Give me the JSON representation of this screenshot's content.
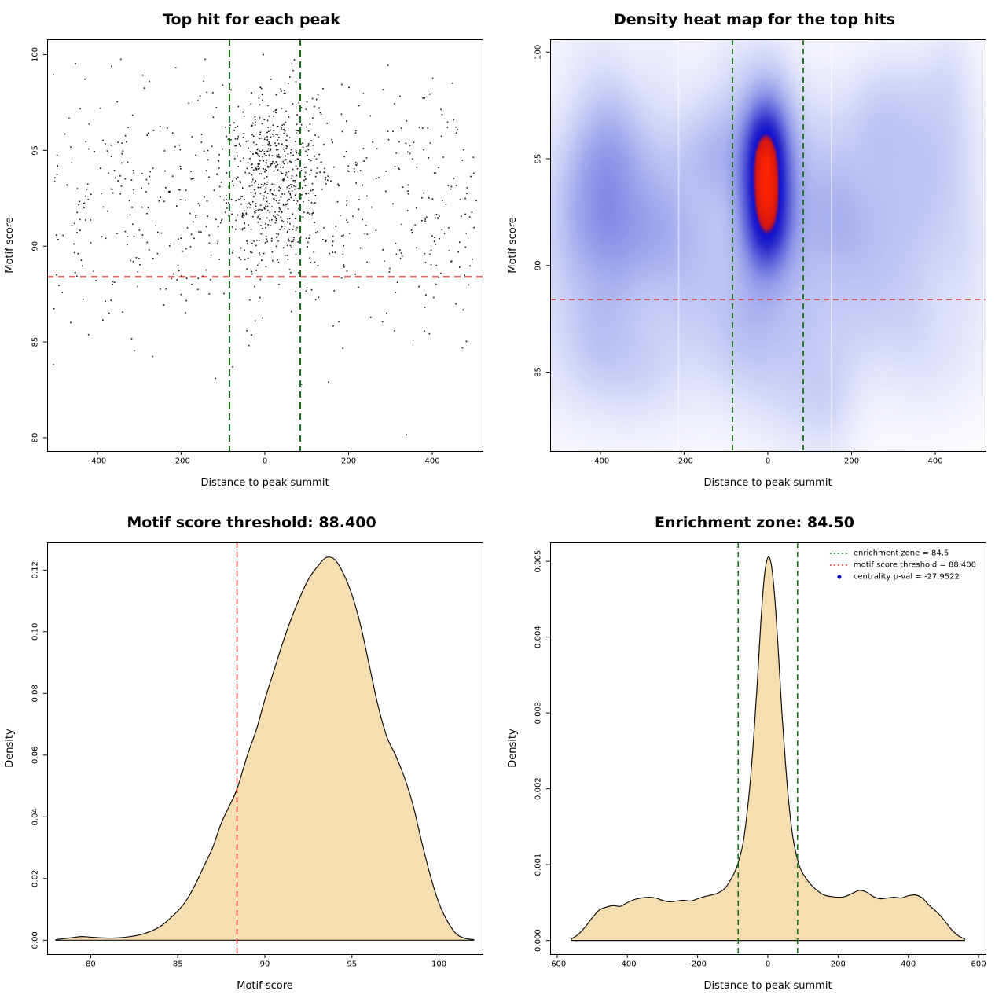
{
  "page": {
    "background": "#ffffff"
  },
  "chart_data": [
    {
      "id": "scatter",
      "type": "scatter",
      "title": "Top hit for each peak",
      "xlabel": "Distance to peak summit",
      "ylabel": "Motif score",
      "xlim": [
        -520,
        520
      ],
      "ylim": [
        79.3,
        100.8
      ],
      "xticks": [
        -400,
        -200,
        0,
        200,
        400
      ],
      "xtick_labels": [
        "-400",
        "-200",
        "0",
        "200",
        "400"
      ],
      "yticks": [
        80,
        85,
        90,
        95,
        100
      ],
      "ytick_labels": [
        "80",
        "85",
        "90",
        "95",
        "100"
      ],
      "point_color": "#111111",
      "n_points": 1150,
      "seed": 42,
      "clusters": [
        {
          "fraction": 0.44,
          "x_mean": 18,
          "x_sd": 58,
          "y_mean": 93.7,
          "y_sd": 2.15
        },
        {
          "fraction": 0.56,
          "x_min": -505,
          "x_max": 505,
          "y_mean": 92.4,
          "y_sd": 3.35
        }
      ],
      "y_clip": [
        80,
        100.4
      ],
      "outliers": [
        [
          338,
          80.15
        ],
        [
          152,
          82.9
        ],
        [
          -118,
          83.1
        ]
      ],
      "hlines": [
        {
          "y": 88.4,
          "color": "#e03030",
          "width": 2,
          "dash": [
            8,
            6
          ]
        }
      ],
      "vlines": [
        {
          "x": -84.5,
          "color": "#166e16",
          "width": 2,
          "dash": [
            8,
            6
          ]
        },
        {
          "x": 84.5,
          "color": "#166e16",
          "width": 2,
          "dash": [
            8,
            6
          ]
        }
      ]
    },
    {
      "id": "heatmap",
      "type": "heatmap",
      "title": "Density heat map for the top hits",
      "xlabel": "Distance to peak summit",
      "ylabel": "Motif score",
      "xlim": [
        -520,
        520
      ],
      "ylim": [
        81.3,
        100.6
      ],
      "xticks": [
        -400,
        -200,
        0,
        200,
        400
      ],
      "xtick_labels": [
        "-400",
        "-200",
        "0",
        "200",
        "400"
      ],
      "yticks": [
        85,
        90,
        95,
        100
      ],
      "ytick_labels": [
        "85",
        "90",
        "95",
        "100"
      ],
      "gamma": 0.75,
      "kernels": [
        [
          -5,
          93.8,
          42,
          2.1,
          1.0
        ],
        [
          -5,
          95.9,
          36,
          1.6,
          0.5
        ],
        [
          0,
          91.6,
          38,
          1.5,
          0.45
        ],
        [
          0,
          92.5,
          380,
          5.5,
          0.1
        ],
        [
          -440,
          93.5,
          70,
          2.5,
          0.16
        ],
        [
          -350,
          95.5,
          60,
          2.0,
          0.13
        ],
        [
          -260,
          92.5,
          55,
          2.2,
          0.12
        ],
        [
          -120,
          95.0,
          50,
          2.0,
          0.12
        ],
        [
          150,
          92.0,
          60,
          2.5,
          0.13
        ],
        [
          260,
          91.5,
          70,
          2.5,
          0.12
        ],
        [
          380,
          92.5,
          60,
          2.5,
          0.12
        ],
        [
          470,
          90.5,
          50,
          2.5,
          0.1
        ],
        [
          60,
          88.5,
          60,
          2.0,
          0.1
        ],
        [
          -60,
          86.5,
          70,
          2.0,
          0.08
        ],
        [
          200,
          87.0,
          80,
          2.0,
          0.08
        ],
        [
          -200,
          88.5,
          60,
          2.0,
          0.09
        ],
        [
          -480,
          88.0,
          60,
          2.5,
          0.09
        ],
        [
          440,
          95.5,
          55,
          2.0,
          0.1
        ],
        [
          320,
          96.5,
          60,
          2.0,
          0.09
        ],
        [
          -320,
          90.0,
          70,
          2.2,
          0.1
        ]
      ],
      "noise": {
        "seed": 11,
        "count": 60,
        "x_range": [
          -515,
          515
        ],
        "y_range": [
          83.5,
          99.5
        ],
        "sx_range": [
          35,
          95
        ],
        "sy_range": [
          1.4,
          3.0
        ],
        "w_range": [
          0.025,
          0.085
        ]
      },
      "colormap": [
        [
          0.0,
          "#ffffff"
        ],
        [
          0.07,
          "#f5f6fd"
        ],
        [
          0.16,
          "#e2e5fa"
        ],
        [
          0.3,
          "#bcc3f2"
        ],
        [
          0.46,
          "#8e96e8"
        ],
        [
          0.62,
          "#565cd8"
        ],
        [
          0.74,
          "#2b2bcc"
        ],
        [
          0.84,
          "#0f0fd0"
        ],
        [
          0.88,
          "#cf1515"
        ],
        [
          1.0,
          "#ff2400"
        ]
      ],
      "artifact_stripes_x": [
        -213,
        152
      ],
      "hlines": [
        {
          "y": 88.4,
          "color": "#e04040",
          "width": 1.4,
          "dash": [
            7,
            5
          ]
        }
      ],
      "vlines": [
        {
          "x": -84.5,
          "color": "#166e16",
          "width": 1.8,
          "dash": [
            7,
            5
          ]
        },
        {
          "x": 84.5,
          "color": "#166e16",
          "width": 1.8,
          "dash": [
            7,
            5
          ]
        }
      ]
    },
    {
      "id": "motif-density",
      "type": "area",
      "title": "Motif score threshold: 88.400",
      "xlabel": "Motif score",
      "ylabel": "Density",
      "xlim": [
        77.5,
        102.5
      ],
      "ylim": [
        -0.0045,
        0.129
      ],
      "xticks": [
        80,
        85,
        90,
        95,
        100
      ],
      "xtick_labels": [
        "80",
        "85",
        "90",
        "95",
        "100"
      ],
      "yticks": [
        0,
        0.02,
        0.04,
        0.06,
        0.08,
        0.1,
        0.12
      ],
      "ytick_labels": [
        "0.00",
        "0.02",
        "0.04",
        "0.06",
        "0.08",
        "0.10",
        "0.12"
      ],
      "fill": "#f7deb0",
      "stroke": "#111111",
      "curve_x": [
        78,
        79,
        79.5,
        80,
        81,
        82,
        83,
        84,
        85,
        85.5,
        86,
        86.5,
        87,
        87.5,
        88,
        88.4,
        89,
        89.5,
        90,
        90.5,
        91,
        91.5,
        92,
        92.5,
        93,
        93.5,
        94,
        94.5,
        95,
        95.5,
        96,
        96.5,
        97,
        97.5,
        98,
        98.5,
        99,
        99.5,
        100,
        100.5,
        101,
        101.5,
        102
      ],
      "curve_y": [
        0.0002,
        0.0009,
        0.0012,
        0.001,
        0.0007,
        0.001,
        0.002,
        0.0045,
        0.0095,
        0.013,
        0.018,
        0.024,
        0.03,
        0.038,
        0.044,
        0.049,
        0.06,
        0.068,
        0.078,
        0.087,
        0.096,
        0.104,
        0.111,
        0.117,
        0.121,
        0.124,
        0.1235,
        0.119,
        0.112,
        0.102,
        0.089,
        0.076,
        0.066,
        0.06,
        0.053,
        0.044,
        0.032,
        0.021,
        0.012,
        0.006,
        0.002,
        0.0006,
        0.0002
      ],
      "vlines": [
        {
          "x": 88.4,
          "color": "#e03030",
          "width": 1.6,
          "dash": [
            7,
            5
          ]
        }
      ]
    },
    {
      "id": "distance-density",
      "type": "area",
      "title": "Enrichment zone: 84.50",
      "xlabel": "Distance to peak summit",
      "ylabel": "Density",
      "xlim": [
        -620,
        620
      ],
      "ylim": [
        -0.00018,
        0.00525
      ],
      "xticks": [
        -600,
        -400,
        -200,
        0,
        200,
        400,
        600
      ],
      "xtick_labels": [
        "-600",
        "-400",
        "-200",
        "0",
        "200",
        "400",
        "600"
      ],
      "yticks": [
        0,
        0.001,
        0.002,
        0.003,
        0.004,
        0.005
      ],
      "ytick_labels": [
        "0.000",
        "0.001",
        "0.002",
        "0.003",
        "0.004",
        "0.005"
      ],
      "fill": "#f7deb0",
      "stroke": "#111111",
      "curve_x": [
        -560,
        -540,
        -520,
        -500,
        -480,
        -460,
        -440,
        -420,
        -400,
        -380,
        -360,
        -340,
        -320,
        -300,
        -280,
        -260,
        -240,
        -220,
        -200,
        -180,
        -160,
        -140,
        -120,
        -100,
        -90,
        -80,
        -70,
        -60,
        -50,
        -40,
        -30,
        -20,
        -10,
        0,
        10,
        20,
        30,
        40,
        50,
        60,
        70,
        80,
        90,
        100,
        120,
        140,
        160,
        180,
        200,
        220,
        240,
        260,
        280,
        300,
        320,
        340,
        360,
        380,
        400,
        420,
        440,
        460,
        480,
        500,
        520,
        540,
        560
      ],
      "curve_y": [
        2e-05,
        8e-05,
        0.00018,
        0.0003,
        0.0004,
        0.00044,
        0.00046,
        0.00045,
        0.0005,
        0.00054,
        0.00056,
        0.00057,
        0.00056,
        0.00053,
        0.00051,
        0.00052,
        0.00053,
        0.00052,
        0.00055,
        0.00058,
        0.0006,
        0.00063,
        0.0007,
        0.00085,
        0.00095,
        0.0011,
        0.0013,
        0.00165,
        0.0021,
        0.0027,
        0.0034,
        0.0042,
        0.0048,
        0.00505,
        0.00495,
        0.0045,
        0.0038,
        0.003,
        0.00235,
        0.0018,
        0.0014,
        0.00115,
        0.00098,
        0.00088,
        0.00075,
        0.00066,
        0.0006,
        0.00058,
        0.00057,
        0.00058,
        0.00062,
        0.00066,
        0.00064,
        0.00058,
        0.00055,
        0.00056,
        0.00057,
        0.00056,
        0.00059,
        0.0006,
        0.00056,
        0.00046,
        0.00038,
        0.00028,
        0.00016,
        7e-05,
        2e-05
      ],
      "vlines": [
        {
          "x": -84.5,
          "color": "#166e16",
          "width": 1.6,
          "dash": [
            7,
            5
          ]
        },
        {
          "x": 84.5,
          "color": "#166e16",
          "width": 1.6,
          "dash": [
            7,
            5
          ]
        }
      ],
      "legend": {
        "items": [
          {
            "label": "enrichment zone = 84.5",
            "color": "#166e16",
            "symbol": "dotted-line"
          },
          {
            "label": "motif score threshold = 88.400",
            "color": "#e03030",
            "symbol": "dotted-line"
          },
          {
            "label": "centrality p-val = -27.9522",
            "color": "#0000cc",
            "symbol": "dot"
          }
        ]
      }
    }
  ]
}
